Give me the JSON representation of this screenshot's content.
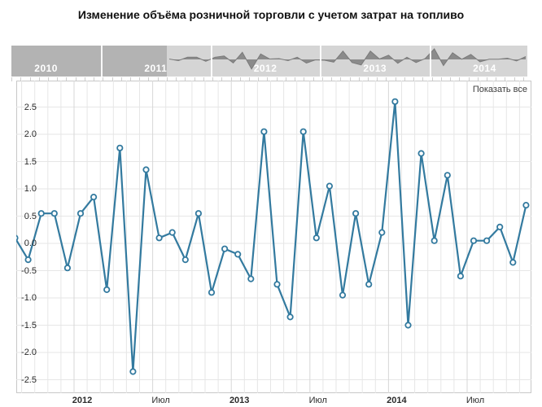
{
  "title": "Изменение объёма розничной торговли с учетом затрат на топливо",
  "show_all_label": "Показать все",
  "colors": {
    "line": "#337a9f",
    "marker_fill": "#ffffff",
    "grid": "#e6e6e6",
    "grid_dark": "#d7d7d7",
    "plot_border": "#c8c8c8",
    "navigator_bg": "#d5d5d5",
    "navigator_mask": "#b3b3b3",
    "navigator_area": "#8b8b8b",
    "navigator_area_stroke": "#7a7a7a",
    "navigator_year_text": "#ffffff",
    "axis_text": "#2b2b2b"
  },
  "navigator": {
    "years": [
      "2010",
      "2011",
      "2012",
      "2013",
      "2014"
    ],
    "selected_range_start": "Авг 2011",
    "selected_range_end": "Ноя 2014"
  },
  "chart_data": {
    "type": "line",
    "title": "Изменение объёма розничной торговли с учетом затрат на топливо",
    "xlabel": "",
    "ylabel": "",
    "ylim": [
      -2.5,
      2.5
    ],
    "yticks": [
      2.5,
      2.0,
      1.5,
      1.0,
      0.5,
      0.0,
      -0.5,
      -1.0,
      -1.5,
      -2.0,
      -2.5
    ],
    "grid": true,
    "legend": false,
    "x": [
      "Авг 2011",
      "Сен 2011",
      "Окт 2011",
      "Ноя 2011",
      "Дек 2011",
      "Янв 2012",
      "Фев 2012",
      "Мар 2012",
      "Апр 2012",
      "Май 2012",
      "Июн 2012",
      "Июл 2012",
      "Авг 2012",
      "Сен 2012",
      "Окт 2012",
      "Ноя 2012",
      "Дек 2012",
      "Янв 2013",
      "Фев 2013",
      "Мар 2013",
      "Апр 2013",
      "Май 2013",
      "Июн 2013",
      "Июл 2013",
      "Авг 2013",
      "Сен 2013",
      "Окт 2013",
      "Ноя 2013",
      "Дек 2013",
      "Янв 2014",
      "Фев 2014",
      "Мар 2014",
      "Апр 2014",
      "Май 2014",
      "Июн 2014",
      "Июл 2014",
      "Авг 2014",
      "Сен 2014",
      "Окт 2014",
      "Ноя 2014"
    ],
    "values": [
      0.1,
      -0.3,
      0.55,
      0.55,
      -0.45,
      0.55,
      0.85,
      -0.85,
      1.75,
      -2.35,
      1.35,
      0.1,
      0.2,
      -0.3,
      0.55,
      -0.9,
      -0.1,
      -0.2,
      -0.65,
      2.05,
      -0.75,
      -1.35,
      2.05,
      0.1,
      1.05,
      -0.95,
      0.55,
      -0.75,
      0.2,
      2.6,
      -1.5,
      1.65,
      0.05,
      1.25,
      -0.6,
      0.05,
      0.05,
      0.3,
      -0.35,
      0.7
    ],
    "xtick_labels": [
      {
        "index": 5,
        "label": "2012",
        "bold": true
      },
      {
        "index": 11,
        "label": "Июл",
        "bold": false
      },
      {
        "index": 17,
        "label": "2013",
        "bold": true
      },
      {
        "index": 23,
        "label": "Июл",
        "bold": false
      },
      {
        "index": 29,
        "label": "2014",
        "bold": true
      },
      {
        "index": 35,
        "label": "Июл",
        "bold": false
      }
    ]
  }
}
